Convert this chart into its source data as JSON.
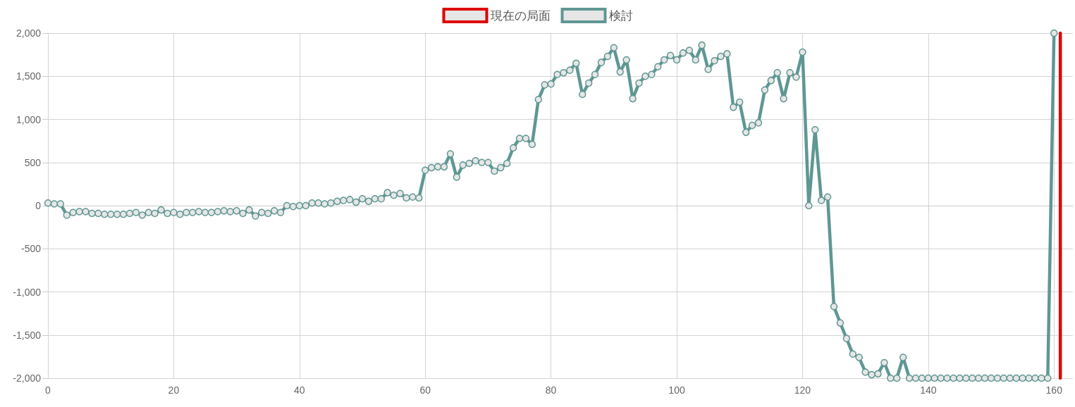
{
  "chart_data": {
    "type": "line",
    "legend": "top",
    "grid": true,
    "marker": "circle",
    "x": [
      0,
      1,
      2,
      3,
      4,
      5,
      6,
      7,
      8,
      9,
      10,
      11,
      12,
      13,
      14,
      15,
      16,
      17,
      18,
      19,
      20,
      21,
      22,
      23,
      24,
      25,
      26,
      27,
      28,
      29,
      30,
      31,
      32,
      33,
      34,
      35,
      36,
      37,
      38,
      39,
      40,
      41,
      42,
      43,
      44,
      45,
      46,
      47,
      48,
      49,
      50,
      51,
      52,
      53,
      54,
      55,
      56,
      57,
      58,
      59,
      60,
      61,
      62,
      63,
      64,
      65,
      66,
      67,
      68,
      69,
      70,
      71,
      72,
      73,
      74,
      75,
      76,
      77,
      78,
      79,
      80,
      81,
      82,
      83,
      84,
      85,
      86,
      87,
      88,
      89,
      90,
      91,
      92,
      93,
      94,
      95,
      96,
      97,
      98,
      99,
      100,
      101,
      102,
      103,
      104,
      105,
      106,
      107,
      108,
      109,
      110,
      111,
      112,
      113,
      114,
      115,
      116,
      117,
      118,
      119,
      120,
      121,
      122,
      123,
      124,
      125,
      126,
      127,
      128,
      129,
      130,
      131,
      132,
      133,
      134,
      135,
      136,
      137,
      138,
      139,
      140,
      141,
      142,
      143,
      144,
      145,
      146,
      147,
      148,
      149,
      150,
      151,
      152,
      153,
      154,
      155,
      156,
      157,
      158,
      159,
      160
    ],
    "xlim": [
      0,
      163
    ],
    "xticks": [
      0,
      20,
      40,
      60,
      80,
      100,
      120,
      140,
      160
    ],
    "ylim": [
      -2000,
      2000
    ],
    "yticks": [
      {
        "value": -2000,
        "label": "-2,000"
      },
      {
        "value": -1500,
        "label": "-1,500"
      },
      {
        "value": -1000,
        "label": "-1,000"
      },
      -500,
      0,
      500,
      {
        "value": 1000,
        "label": "1,000"
      },
      {
        "value": 1500,
        "label": "1,500"
      },
      {
        "value": 2000,
        "label": "2,000"
      }
    ],
    "series": [
      {
        "name": "現在の局面",
        "color": "#dd0000",
        "marker": "none",
        "x": [
          161,
          161
        ],
        "values": [
          -2000,
          2000
        ]
      },
      {
        "name": "検討",
        "color": "#5f9793",
        "values": [
          30,
          20,
          20,
          -110,
          -80,
          -70,
          -70,
          -90,
          -90,
          -100,
          -100,
          -100,
          -100,
          -90,
          -80,
          -110,
          -80,
          -90,
          -50,
          -90,
          -80,
          -100,
          -80,
          -80,
          -70,
          -80,
          -80,
          -70,
          -60,
          -70,
          -60,
          -90,
          -50,
          -120,
          -80,
          -90,
          -60,
          -80,
          0,
          -10,
          0,
          0,
          30,
          30,
          20,
          30,
          50,
          60,
          70,
          40,
          80,
          50,
          80,
          80,
          150,
          120,
          140,
          90,
          100,
          90,
          410,
          440,
          450,
          450,
          600,
          330,
          470,
          490,
          520,
          500,
          500,
          400,
          440,
          490,
          670,
          780,
          780,
          710,
          1230,
          1400,
          1410,
          1520,
          1540,
          1570,
          1650,
          1290,
          1420,
          1520,
          1660,
          1730,
          1830,
          1550,
          1690,
          1240,
          1420,
          1500,
          1520,
          1610,
          1690,
          1740,
          1690,
          1770,
          1800,
          1690,
          1860,
          1580,
          1680,
          1730,
          1760,
          1140,
          1200,
          850,
          930,
          960,
          1340,
          1450,
          1540,
          1240,
          1540,
          1490,
          1780,
          0,
          880,
          60,
          100,
          -1170,
          -1360,
          -1540,
          -1720,
          -1760,
          -1930,
          -1960,
          -1950,
          -1820,
          -2000,
          -2000,
          -1760,
          -2000,
          -2000,
          -2000,
          -2000,
          -2000,
          -2000,
          -2000,
          -2000,
          -2000,
          -2000,
          -2000,
          -2000,
          -2000,
          -2000,
          -2000,
          -2000,
          -2000,
          -2000,
          -2000,
          -2000,
          -2000,
          -2000,
          -2000,
          2000
        ]
      }
    ]
  }
}
